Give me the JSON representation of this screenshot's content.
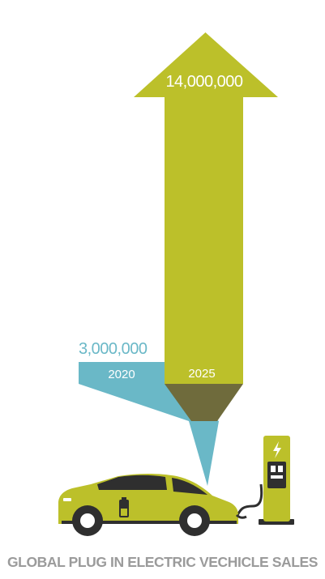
{
  "colors": {
    "green": "#bcc02a",
    "green_dark": "#6f6b3c",
    "teal": "#6ab8c7",
    "teal_dark": "#3f8c99",
    "caption_gray": "#9b9b9b",
    "dark": "#2f2f2f",
    "white": "#ffffff"
  },
  "icons": [
    "car-icon",
    "charging-station-icon",
    "lightning-bolt-icon",
    "battery-icon"
  ],
  "caption": "GLOBAL PLUG IN ELECTRIC VECHICLE SALES",
  "chart_data": {
    "type": "bar",
    "title": "GLOBAL PLUG IN ELECTRIC VECHICLE SALES",
    "categories": [
      "2020",
      "2025"
    ],
    "values": [
      3000000,
      14000000
    ],
    "value_labels": [
      "3,000,000",
      "14,000,000"
    ],
    "xlabel": "",
    "ylabel": "",
    "grid": false,
    "legend": "none"
  }
}
